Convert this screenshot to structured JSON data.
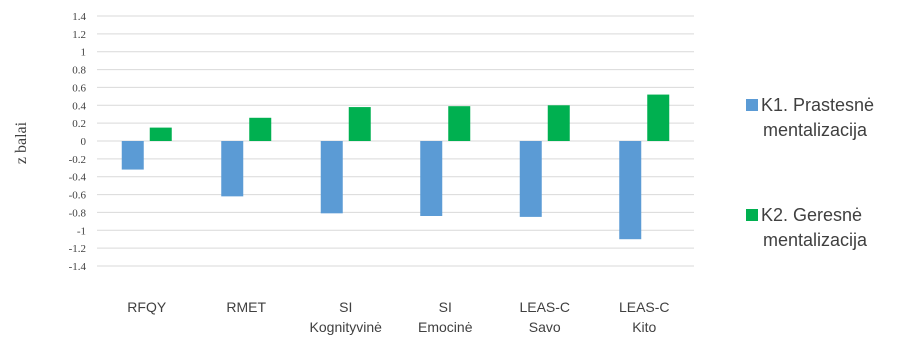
{
  "chart_data": {
    "type": "bar",
    "ylabel": "z balai",
    "ylim": [
      -1.4,
      1.4
    ],
    "ytick_step": 0.2,
    "grid": true,
    "legend_position": "right",
    "categories": [
      [
        "RFQY"
      ],
      [
        "RMET"
      ],
      [
        "SI",
        "Kognityvinė"
      ],
      [
        "SI",
        "Emocinė"
      ],
      [
        "LEAS-C",
        "Savo"
      ],
      [
        "LEAS-C",
        "Kito"
      ]
    ],
    "series": [
      {
        "name": [
          "K1. Prastesnė",
          "mentalizacija"
        ],
        "color": "#5b9bd5",
        "values": [
          -0.32,
          -0.62,
          -0.81,
          -0.84,
          -0.85,
          -1.1
        ]
      },
      {
        "name": [
          "K2. Geresnė",
          "mentalizacija"
        ],
        "color": "#00b050",
        "values": [
          0.15,
          0.26,
          0.38,
          0.39,
          0.4,
          0.52
        ]
      }
    ]
  }
}
